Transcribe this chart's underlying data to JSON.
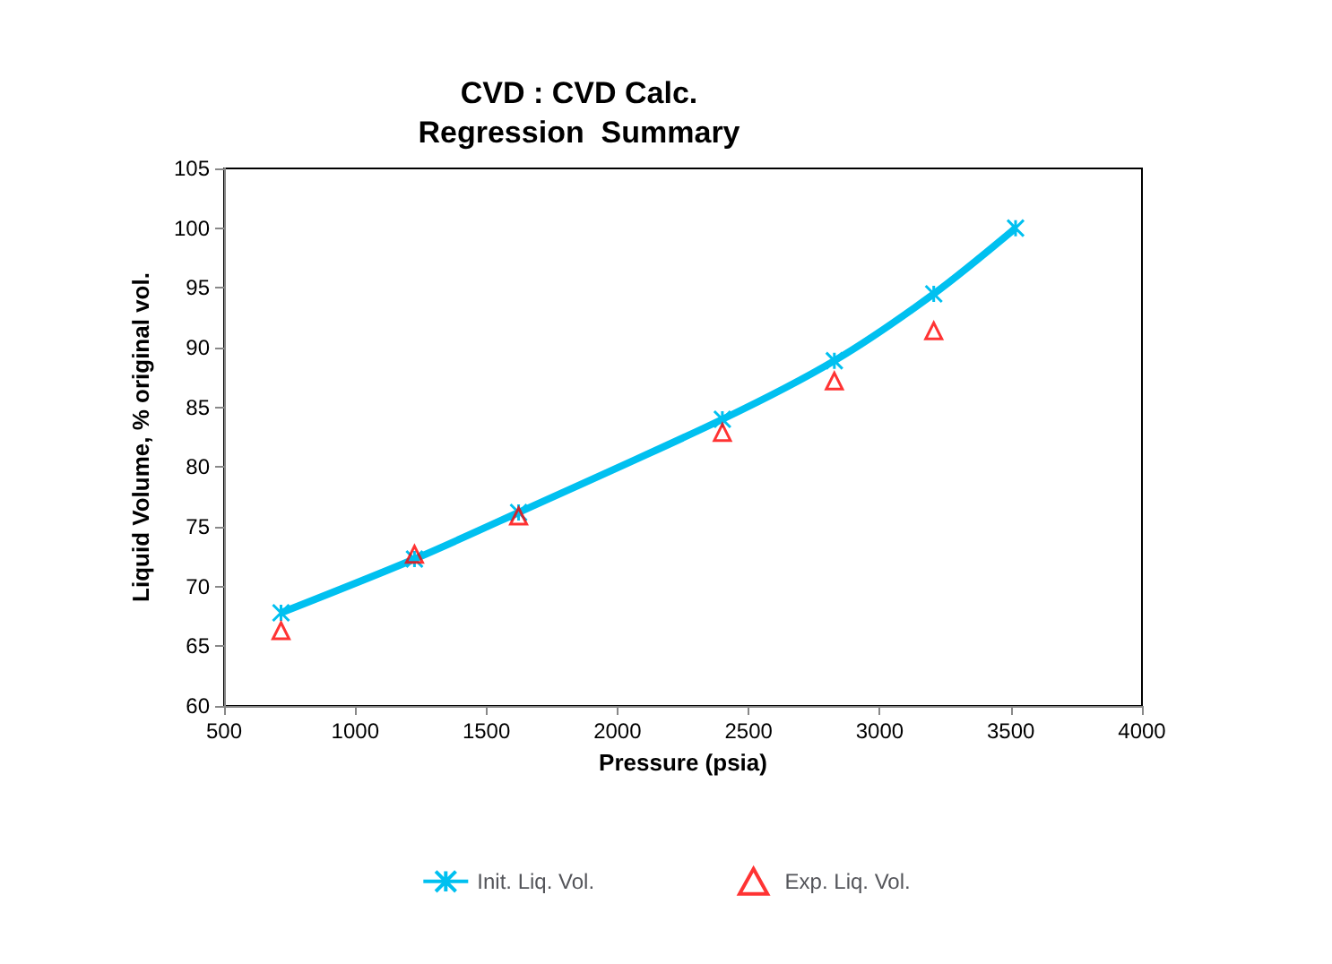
{
  "chart_data": {
    "type": "line",
    "title": "CVD : CVD Calc.\nRegression  Summary",
    "xlabel": "Pressure (psia)",
    "ylabel": "Liquid Volume, % original vol.",
    "xlim": [
      500,
      4000
    ],
    "xticks": [
      500,
      1000,
      1500,
      2000,
      2500,
      3000,
      3500,
      4000
    ],
    "ylim": [
      60,
      105
    ],
    "yticks": [
      60,
      65,
      70,
      75,
      80,
      85,
      90,
      95,
      100,
      105
    ],
    "grid": false,
    "legend": "bottom",
    "series": [
      {
        "name": "Init. Liq. Vol.",
        "color": "#00c0f0",
        "marker": "cross",
        "x": [
          717,
          1226,
          1623,
          2400,
          2827,
          3206,
          3518
        ],
        "values": [
          67.8,
          72.3,
          76.2,
          84.0,
          88.9,
          94.5,
          100
        ]
      },
      {
        "name": "Exp. Liq. Vol.",
        "type": "scatter",
        "color": "#ff0000",
        "marker": "triangle",
        "x": [
          717,
          1226,
          1623,
          2400,
          2827,
          3206
        ],
        "values": [
          66.3,
          72.7,
          75.9,
          82.9,
          87.2,
          91.4
        ]
      }
    ]
  }
}
